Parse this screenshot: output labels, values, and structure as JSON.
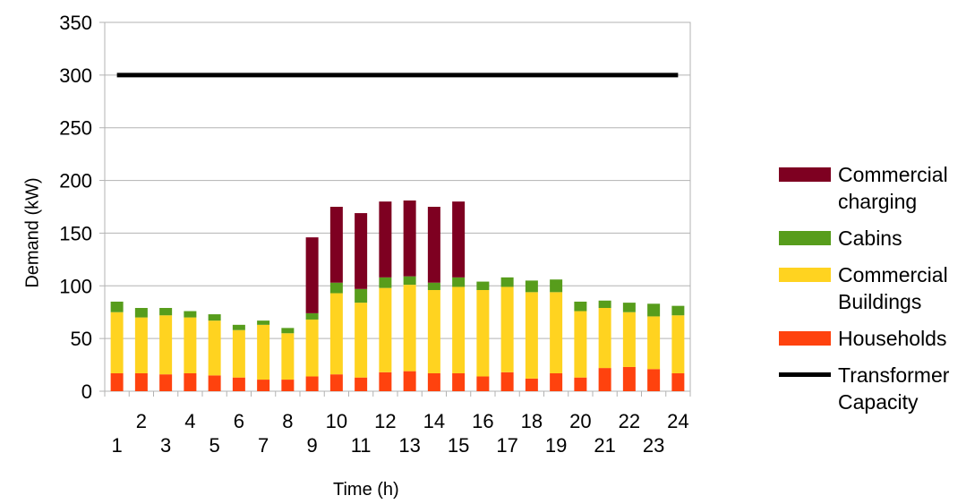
{
  "chart_data": {
    "type": "bar",
    "stacked": true,
    "xlabel": "Time (h)",
    "ylabel": "Demand (kW)",
    "ylim": [
      0,
      350
    ],
    "yticks": [
      0,
      50,
      100,
      150,
      200,
      250,
      300,
      350
    ],
    "grid": true,
    "legend_position": "right",
    "categories": [
      "1",
      "2",
      "3",
      "4",
      "5",
      "6",
      "7",
      "8",
      "9",
      "10",
      "11",
      "12",
      "13",
      "14",
      "15",
      "16",
      "17",
      "18",
      "19",
      "20",
      "21",
      "22",
      "23",
      "24"
    ],
    "series": [
      {
        "name": "Households",
        "color": "#ff420e",
        "values": [
          17,
          17,
          16,
          17,
          15,
          13,
          11,
          11,
          14,
          16,
          13,
          18,
          19,
          17,
          17,
          14,
          18,
          12,
          17,
          13,
          22,
          23,
          21,
          17
        ]
      },
      {
        "name": "Commercial Buildings",
        "color": "#ffd320",
        "values": [
          58,
          53,
          56,
          53,
          52,
          45,
          52,
          44,
          54,
          77,
          71,
          80,
          82,
          79,
          82,
          82,
          81,
          82,
          77,
          63,
          57,
          52,
          50,
          55
        ]
      },
      {
        "name": "Cabins",
        "color": "#579d1c",
        "values": [
          10,
          9,
          7,
          6,
          6,
          5,
          4,
          5,
          6,
          10,
          13,
          10,
          8,
          7,
          9,
          8,
          9,
          11,
          12,
          9,
          7,
          9,
          12,
          9
        ]
      },
      {
        "name": "Commercial charging",
        "color": "#7e0021",
        "values": [
          0,
          0,
          0,
          0,
          0,
          0,
          0,
          0,
          72,
          72,
          72,
          72,
          72,
          72,
          72,
          0,
          0,
          0,
          0,
          0,
          0,
          0,
          0,
          0
        ]
      }
    ],
    "lines": [
      {
        "name": "Transformer Capacity",
        "color": "#000000",
        "value": 300
      }
    ]
  },
  "legend": {
    "items": [
      {
        "label_line1": "Commercial",
        "label_line2": "charging",
        "color": "#7e0021",
        "kind": "bar"
      },
      {
        "label_line1": "Cabins",
        "label_line2": "",
        "color": "#579d1c",
        "kind": "bar"
      },
      {
        "label_line1": "Commercial",
        "label_line2": "Buildings",
        "color": "#ffd320",
        "kind": "bar"
      },
      {
        "label_line1": "Households",
        "label_line2": "",
        "color": "#ff420e",
        "kind": "bar"
      },
      {
        "label_line1": "Transformer",
        "label_line2": "Capacity",
        "color": "#000000",
        "kind": "line"
      }
    ]
  }
}
